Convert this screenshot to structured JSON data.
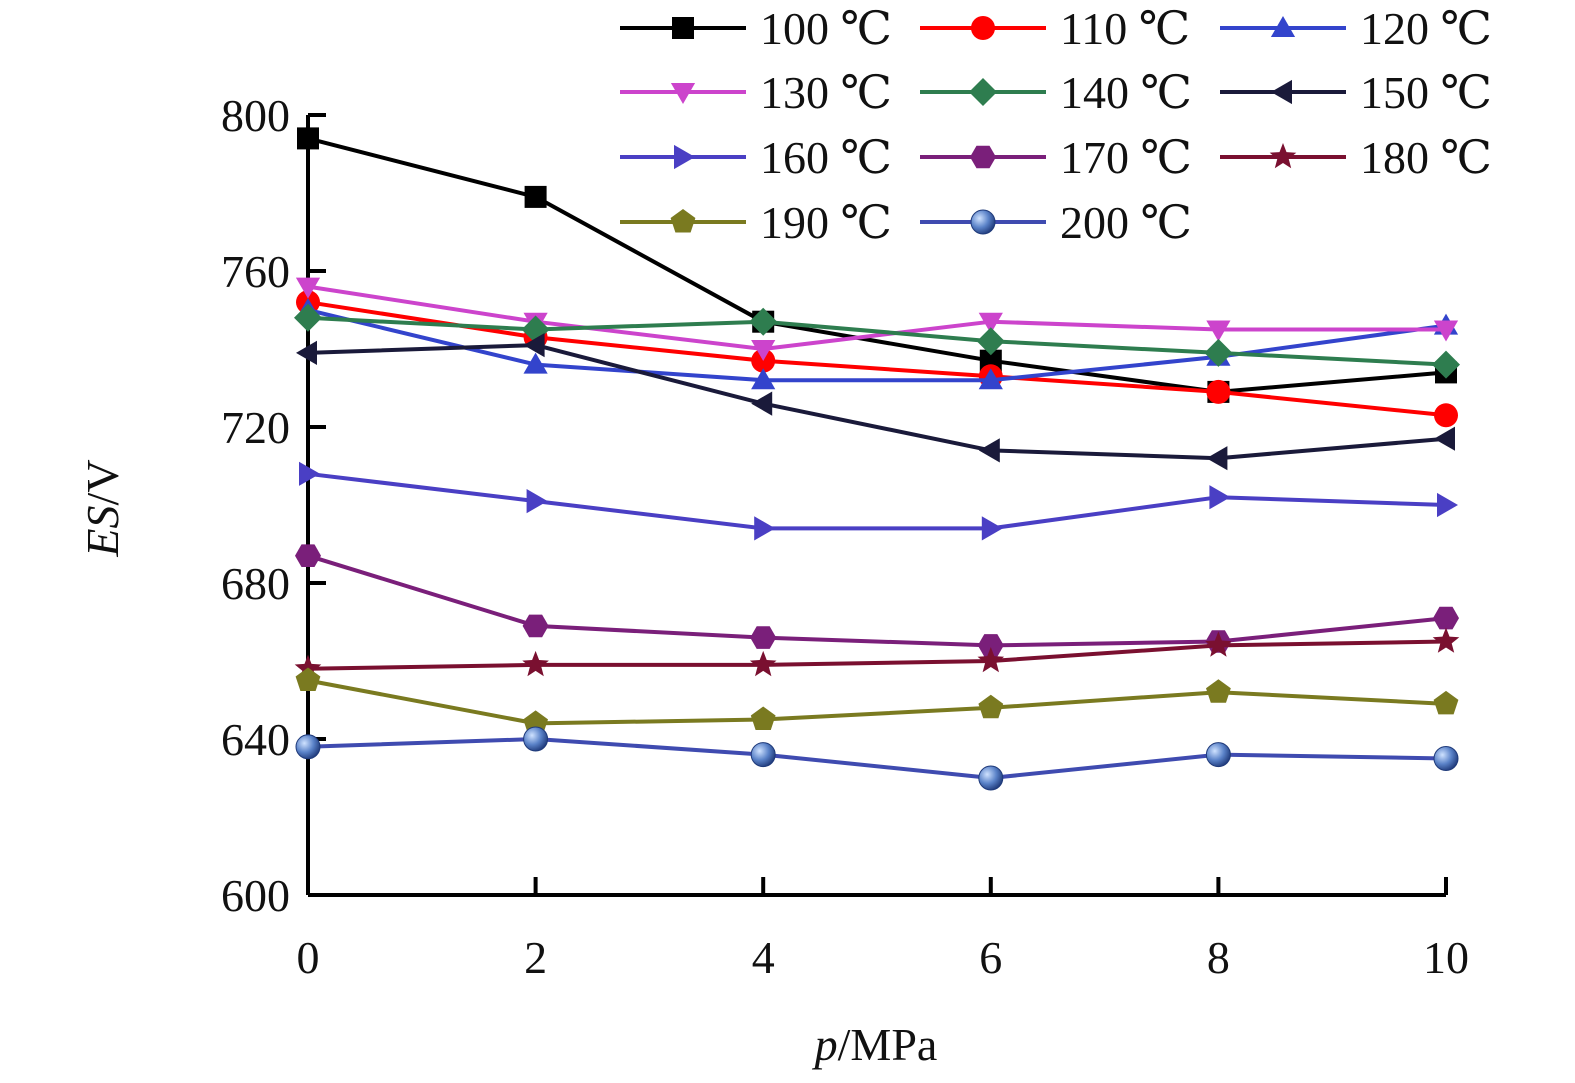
{
  "chart_data": {
    "type": "line",
    "xlabel_italic": "p",
    "xlabel_rest": "/MPa",
    "ylabel_italic": "ES",
    "ylabel_rest": "/V",
    "x": [
      0,
      2,
      4,
      6,
      8,
      10
    ],
    "xlim": [
      0,
      10
    ],
    "ylim": [
      600,
      800
    ],
    "xticks": [
      0,
      2,
      4,
      6,
      8,
      10
    ],
    "yticks": [
      600,
      640,
      680,
      720,
      760,
      800
    ],
    "grid": false,
    "legend_position": "top-right",
    "series": [
      {
        "name": "100 ℃",
        "color": "#000000",
        "marker": "square",
        "values": [
          794,
          779,
          747,
          737,
          729,
          734
        ]
      },
      {
        "name": "110 ℃",
        "color": "#ff0000",
        "marker": "circle",
        "values": [
          752,
          743,
          737,
          733,
          729,
          723
        ]
      },
      {
        "name": "120 ℃",
        "color": "#3344cc",
        "marker": "triangle-up",
        "values": [
          750,
          736,
          732,
          732,
          738,
          746
        ]
      },
      {
        "name": "130 ℃",
        "color": "#cc44cc",
        "marker": "triangle-down",
        "values": [
          756,
          747,
          740,
          747,
          745,
          745
        ]
      },
      {
        "name": "140 ℃",
        "color": "#2e7d4f",
        "marker": "diamond",
        "values": [
          748,
          745,
          747,
          742,
          739,
          736
        ]
      },
      {
        "name": "150 ℃",
        "color": "#1a1a3a",
        "marker": "triangle-left",
        "values": [
          739,
          741,
          726,
          714,
          712,
          717
        ]
      },
      {
        "name": "160 ℃",
        "color": "#4a3fc4",
        "marker": "triangle-right",
        "values": [
          708,
          701,
          694,
          694,
          702,
          700
        ]
      },
      {
        "name": "170 ℃",
        "color": "#7a1f7a",
        "marker": "hexagon",
        "values": [
          687,
          669,
          666,
          664,
          665,
          671
        ]
      },
      {
        "name": "180 ℃",
        "color": "#7a1030",
        "marker": "star",
        "values": [
          658,
          659,
          659,
          660,
          664,
          665
        ]
      },
      {
        "name": "190 ℃",
        "color": "#7a7a20",
        "marker": "pentagon",
        "values": [
          655,
          644,
          645,
          648,
          652,
          649
        ]
      },
      {
        "name": "200 ℃",
        "color": "#3f4bb0",
        "marker": "sphere",
        "values": [
          638,
          640,
          636,
          630,
          636,
          635
        ]
      }
    ]
  }
}
